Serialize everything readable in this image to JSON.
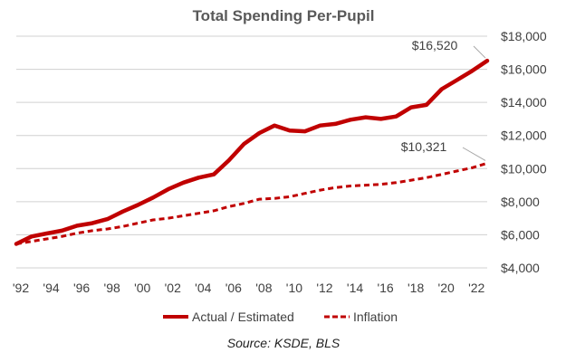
{
  "chart_data": {
    "type": "line",
    "title": "Total Spending Per-Pupil",
    "xlabel": "",
    "ylabel": "",
    "source": "Source: KSDE, BLS",
    "x_ticks": [
      "'92",
      "'94",
      "'96",
      "'98",
      "'00",
      "'02",
      "'04",
      "'06",
      "'08",
      "'10",
      "'12",
      "'14",
      "'16",
      "'18",
      "'20",
      "'22"
    ],
    "y_ticks": [
      "$4,000",
      "$6,000",
      "$8,000",
      "$10,000",
      "$12,000",
      "$14,000",
      "$16,000",
      "$18,000"
    ],
    "xlim": [
      1992,
      2023
    ],
    "ylim": [
      4000,
      18000
    ],
    "grid": true,
    "legend_position": "bottom",
    "series": [
      {
        "name": "Actual / Estimated",
        "color": "#c00000",
        "style": "solid",
        "x": [
          1992,
          1993,
          1994,
          1995,
          1996,
          1997,
          1998,
          1999,
          2000,
          2001,
          2002,
          2003,
          2004,
          2005,
          2006,
          2007,
          2008,
          2009,
          2010,
          2011,
          2012,
          2013,
          2014,
          2015,
          2016,
          2017,
          2018,
          2019,
          2020,
          2021,
          2022,
          2023
        ],
        "values": [
          5450,
          5900,
          6080,
          6250,
          6550,
          6700,
          6950,
          7400,
          7800,
          8250,
          8750,
          9150,
          9450,
          9650,
          10500,
          11500,
          12150,
          12600,
          12300,
          12250,
          12600,
          12700,
          12950,
          13100,
          13000,
          13150,
          13700,
          13850,
          14800,
          15350,
          15900,
          16520
        ]
      },
      {
        "name": "Inflation",
        "color": "#c00000",
        "style": "dashed",
        "x": [
          1992,
          1993,
          1994,
          1995,
          1996,
          1997,
          1998,
          1999,
          2000,
          2001,
          2002,
          2003,
          2004,
          2005,
          2006,
          2007,
          2008,
          2009,
          2010,
          2011,
          2012,
          2013,
          2014,
          2015,
          2016,
          2017,
          2018,
          2019,
          2020,
          2021,
          2022,
          2023
        ],
        "values": [
          5450,
          5600,
          5750,
          5900,
          6100,
          6250,
          6350,
          6500,
          6700,
          6900,
          7000,
          7150,
          7300,
          7450,
          7700,
          7900,
          8150,
          8200,
          8300,
          8500,
          8700,
          8850,
          8950,
          9000,
          9050,
          9150,
          9300,
          9450,
          9650,
          9850,
          10050,
          10321
        ]
      }
    ],
    "annotations": [
      {
        "series": 0,
        "x": 2023,
        "y": 16520,
        "text": "$16,520"
      },
      {
        "series": 1,
        "x": 2023,
        "y": 10321,
        "text": "$10,321"
      }
    ]
  }
}
